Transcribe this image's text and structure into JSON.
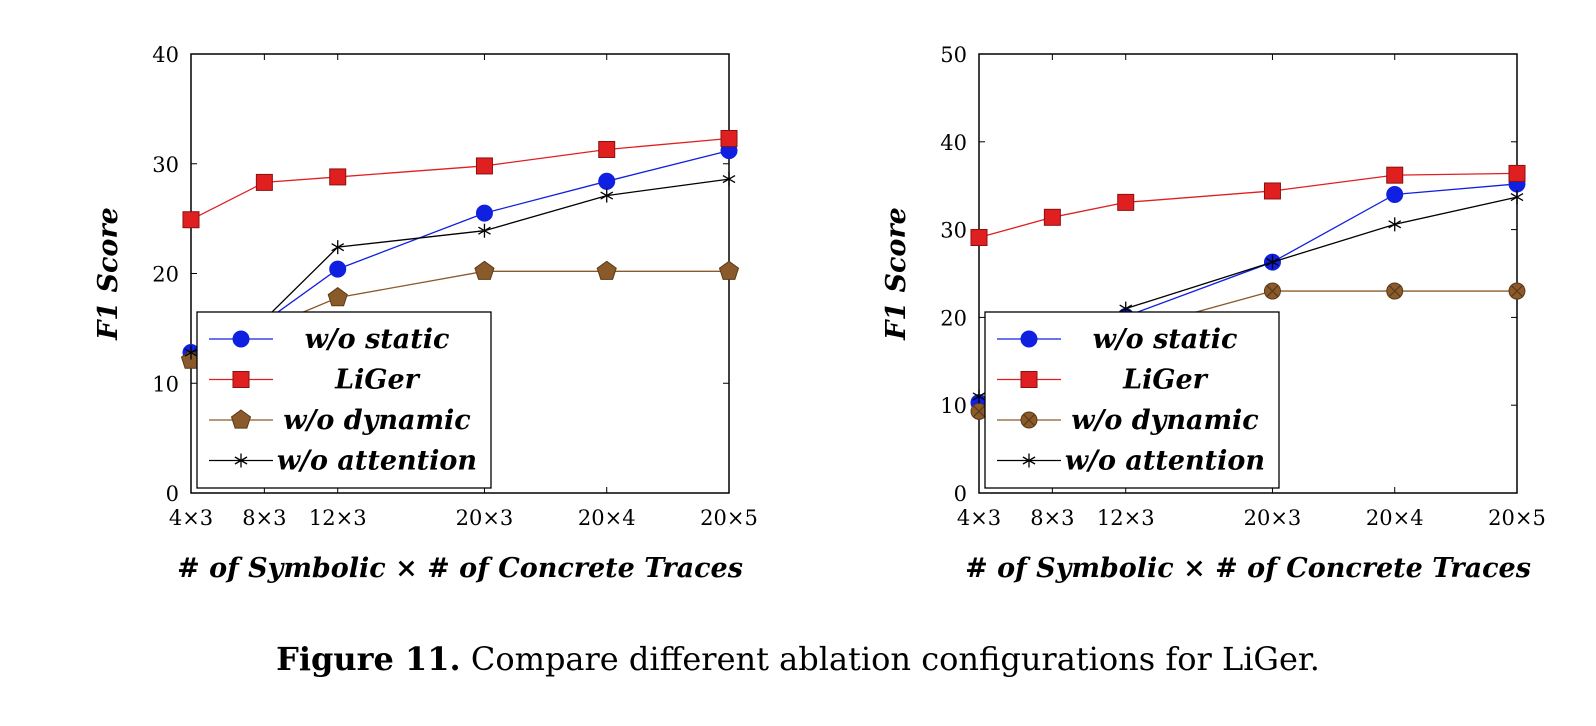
{
  "caption": {
    "label": "Figure 11.",
    "text": "Compare different ablation configurations for LiGer."
  },
  "series_style": {
    "wo_static": {
      "color": "#1020e0",
      "marker": "circle"
    },
    "liger": {
      "color": "#e02020",
      "marker": "square"
    },
    "wo_dynamic": {
      "color": "#8b5a2b",
      "marker_left": "pentagon",
      "marker_right": "circle-x"
    },
    "wo_attention": {
      "color": "#000000",
      "marker": "star"
    }
  },
  "chart_data": [
    {
      "type": "line",
      "xlabel": "# of Symbolic × # of Concrete Traces",
      "ylabel": "F1 Score",
      "categories": [
        "20×5",
        "20×4",
        "20×3",
        "12×3",
        "8×3",
        "4×3"
      ],
      "x": [
        100,
        80,
        60,
        36,
        24,
        12
      ],
      "ylim": [
        0,
        40
      ],
      "yticks": [
        "0",
        "10",
        "20",
        "30",
        "40"
      ],
      "legend_position": "bottom-left",
      "series": [
        {
          "name": "w/o static",
          "values": [
            31.2,
            28.4,
            25.5,
            20.4,
            15.6,
            12.8
          ]
        },
        {
          "name": "LiGer",
          "values": [
            32.3,
            31.3,
            29.8,
            28.8,
            28.3,
            24.9
          ]
        },
        {
          "name": "w/o dynamic",
          "values": [
            20.2,
            20.2,
            20.2,
            17.8,
            15.0,
            12.1
          ]
        },
        {
          "name": "w/o attention",
          "values": [
            28.6,
            27.1,
            23.9,
            22.4,
            15.8,
            12.8
          ]
        }
      ]
    },
    {
      "type": "line",
      "xlabel": "# of Symbolic × # of Concrete Traces",
      "ylabel": "F1 Score",
      "categories": [
        "20×5",
        "20×4",
        "20×3",
        "12×3",
        "8×3",
        "4×3"
      ],
      "x": [
        100,
        80,
        60,
        36,
        24,
        12
      ],
      "ylim": [
        0,
        50
      ],
      "yticks": [
        "0",
        "10",
        "20",
        "30",
        "40",
        "50"
      ],
      "legend_position": "bottom-left",
      "series": [
        {
          "name": "w/o static",
          "values": [
            35.2,
            34.0,
            26.3,
            20.1,
            14.8,
            10.3
          ]
        },
        {
          "name": "LiGer",
          "values": [
            36.4,
            36.2,
            34.4,
            33.1,
            31.4,
            29.1
          ]
        },
        {
          "name": "w/o dynamic",
          "values": [
            23.0,
            23.0,
            23.0,
            18.4,
            14.2,
            9.3
          ]
        },
        {
          "name": "w/o attention",
          "values": [
            33.7,
            30.6,
            26.3,
            21.0,
            16.0,
            11.0
          ]
        }
      ]
    }
  ]
}
